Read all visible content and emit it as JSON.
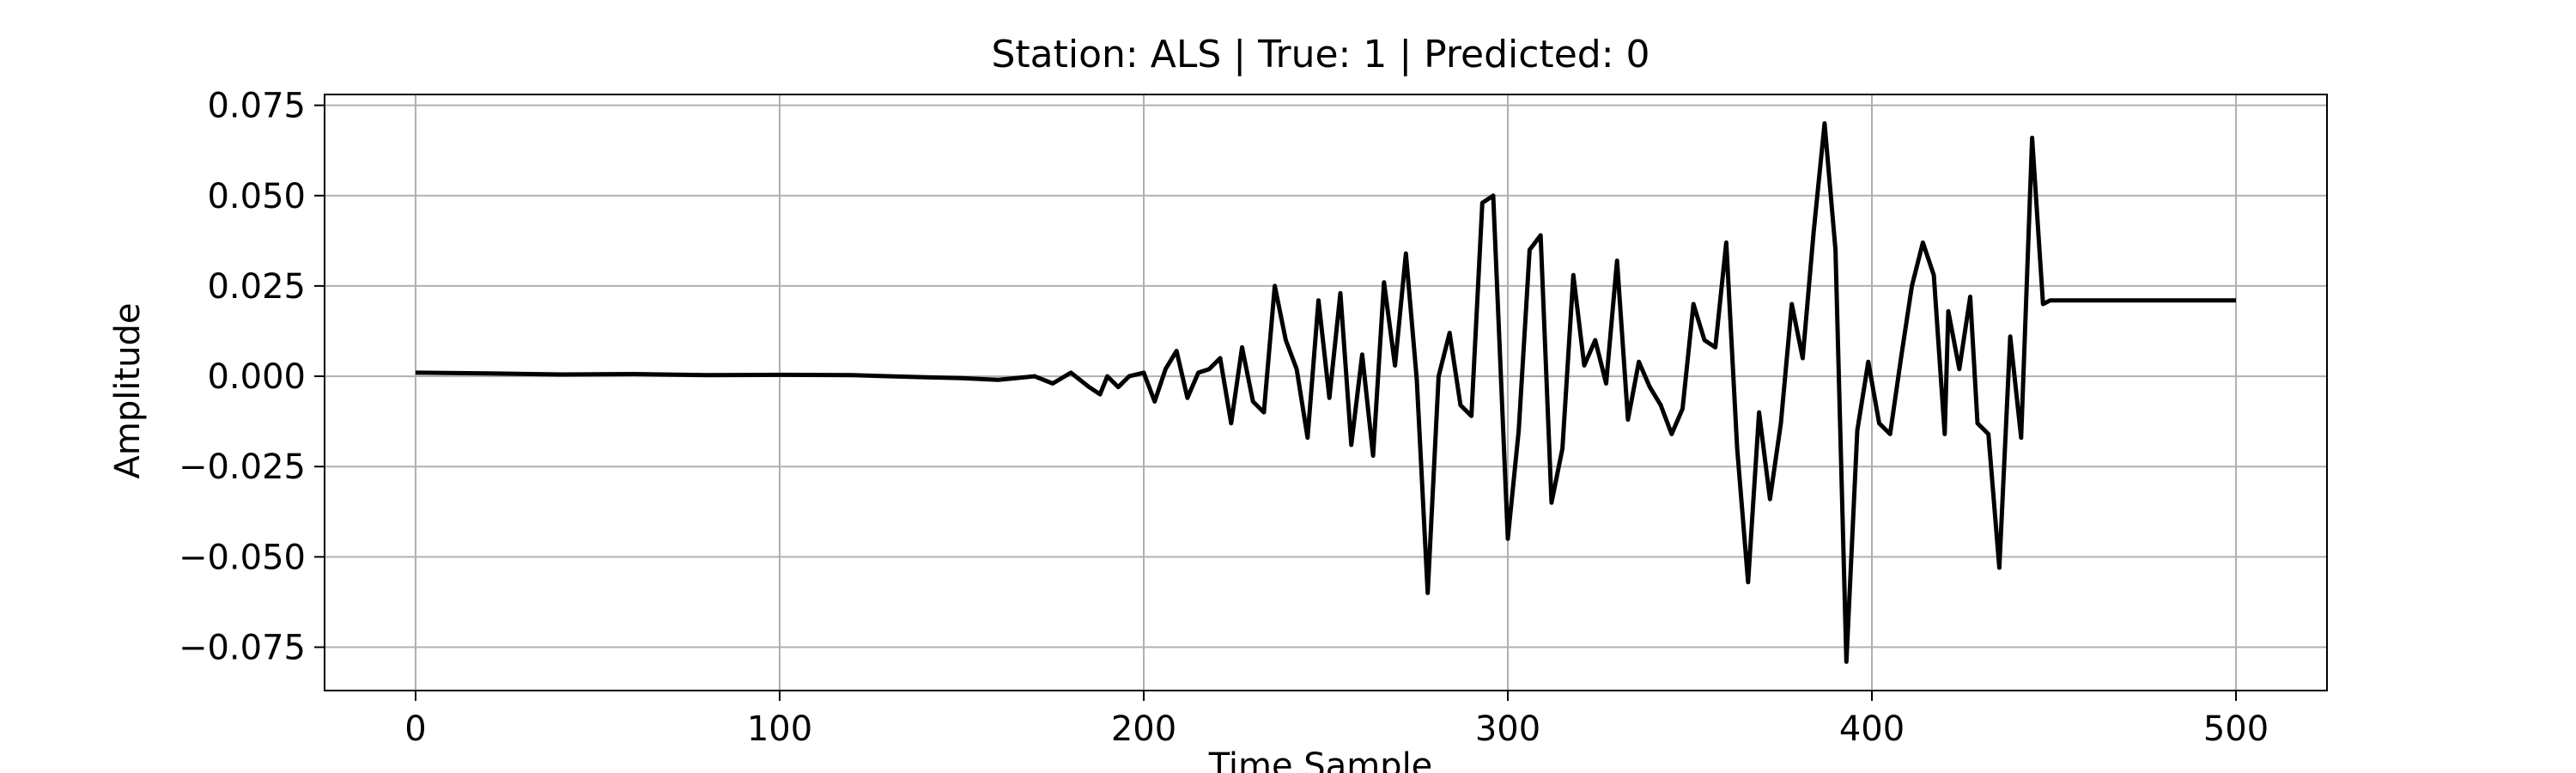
{
  "chart_data": {
    "type": "line",
    "title": "Station: ALS | True: 1 | Predicted: 0",
    "xlabel": "Time Sample",
    "ylabel": "Amplitude",
    "xlim": [
      -25,
      525
    ],
    "ylim": [
      -0.087,
      0.078
    ],
    "xticks": [
      0,
      100,
      200,
      300,
      400,
      500
    ],
    "xtick_labels": [
      "0",
      "100",
      "200",
      "300",
      "400",
      "500"
    ],
    "yticks": [
      0.075,
      0.05,
      0.025,
      0.0,
      -0.025,
      -0.05,
      -0.075
    ],
    "ytick_labels": [
      "0.075",
      "0.050",
      "0.025",
      "0.000",
      "−0.025",
      "−0.050",
      "−0.075"
    ],
    "grid": true,
    "line_color": "#000000",
    "series": [
      {
        "x": [
          0,
          20,
          40,
          60,
          80,
          100,
          120,
          140,
          150,
          160,
          170,
          175,
          180,
          185,
          188,
          190,
          193,
          196,
          200,
          203,
          206,
          209,
          212,
          215,
          218,
          221,
          224,
          227,
          230,
          233,
          236,
          239,
          242,
          245,
          248,
          251,
          254,
          257,
          260,
          263,
          266,
          269,
          272,
          275,
          278,
          281,
          284,
          287,
          290,
          293,
          296,
          300,
          303,
          306,
          309,
          312,
          315,
          318,
          321,
          324,
          327,
          330,
          333,
          336,
          339,
          342,
          345,
          348,
          351,
          354,
          357,
          360,
          363,
          366,
          369,
          372,
          375,
          378,
          381,
          384,
          387,
          390,
          393,
          396,
          399,
          402,
          405,
          408,
          411,
          414,
          417,
          420,
          421,
          424,
          427,
          429,
          432,
          435,
          438,
          441,
          444,
          447,
          449,
          452,
          455,
          458,
          461,
          464,
          467,
          470,
          473,
          476,
          479,
          482,
          485,
          488,
          491,
          494,
          497,
          500
        ],
        "y": [
          0.001,
          0.0008,
          0.0005,
          0.0006,
          0.0003,
          0.0004,
          0.0003,
          -0.0003,
          -0.0005,
          -0.001,
          0.0,
          -0.002,
          0.001,
          -0.003,
          -0.005,
          0.0,
          -0.003,
          0.0,
          0.001,
          -0.007,
          0.002,
          0.007,
          -0.006,
          0.001,
          0.002,
          0.005,
          -0.013,
          0.008,
          -0.007,
          -0.01,
          0.025,
          0.01,
          0.002,
          -0.017,
          0.021,
          -0.006,
          0.023,
          -0.019,
          0.006,
          -0.022,
          0.026,
          0.003,
          0.034,
          -0.001,
          -0.06,
          0.0,
          0.012,
          -0.008,
          -0.011,
          0.048,
          0.05,
          -0.045,
          -0.015,
          0.035,
          0.039,
          -0.035,
          -0.02,
          0.028,
          0.003,
          0.01,
          -0.002,
          0.032,
          -0.012,
          0.004,
          -0.003,
          -0.008,
          -0.016,
          -0.009,
          0.02,
          0.01,
          0.008,
          0.037,
          -0.02,
          -0.057,
          -0.01,
          -0.034,
          -0.013,
          0.02,
          0.005,
          0.04,
          0.07,
          0.035,
          -0.079,
          -0.015,
          0.004,
          -0.013,
          -0.016,
          0.005,
          0.025,
          0.037,
          0.028,
          -0.016,
          0.018,
          0.002,
          0.022,
          -0.013,
          -0.016,
          -0.053,
          0.011,
          -0.017,
          0.066,
          0.02,
          0.021,
          0.021,
          0.021,
          0.021,
          0.021,
          0.021,
          0.021,
          0.021,
          0.021,
          0.021,
          0.021,
          0.021,
          0.021,
          0.021,
          0.021,
          0.021,
          0.021,
          0.021
        ]
      }
    ]
  }
}
